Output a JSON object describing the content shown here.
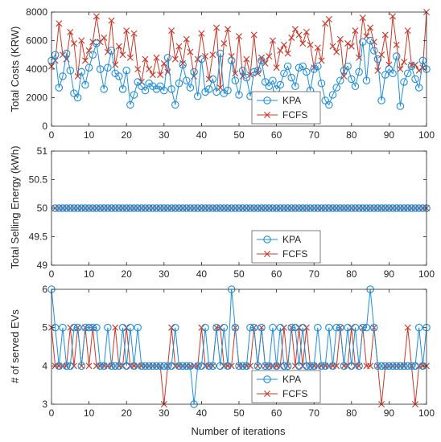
{
  "xlabel": "Number of iterations",
  "colors": {
    "kpa": "#1f8fd8",
    "fcfs": "#c8382a",
    "axis": "#262626",
    "background": "#ffffff"
  },
  "markers": {
    "kpa": "circle",
    "fcfs": "x-mark"
  },
  "chart_data": [
    {
      "type": "line",
      "ylabel": "Total Costs (KRW)",
      "xlim": [
        0,
        100
      ],
      "ylim": [
        0,
        8000
      ],
      "xticks": [
        "0",
        "10",
        "20",
        "30",
        "40",
        "50",
        "60",
        "70",
        "80",
        "90",
        "100"
      ],
      "yticks": [
        "0",
        "2000",
        "4000",
        "6000",
        "8000"
      ],
      "legend": "bottom-right",
      "grid": false,
      "series": [
        {
          "name": "KPA",
          "values": [
            4600,
            5000,
            2700,
            3500,
            5100,
            3900,
            2300,
            2000,
            3800,
            2900,
            4100,
            5000,
            5800,
            4000,
            2600,
            4100,
            5300,
            3700,
            3500,
            2600,
            3900,
            1500,
            2200,
            3100,
            2800,
            2500,
            3000,
            2800,
            2600,
            2800,
            2500,
            4800,
            2600,
            1500,
            3000,
            4300,
            3200,
            2700,
            3800,
            2100,
            4700,
            2400,
            2600,
            3300,
            2400,
            5100,
            2300,
            2500,
            4600,
            3200,
            2200,
            3900,
            3400,
            2100,
            3800,
            3900,
            4600,
            3100,
            2800,
            3200,
            2600,
            2900,
            3700,
            4200,
            3400,
            2800,
            4100,
            4200,
            3800,
            2500,
            4000,
            4200,
            3000,
            1800,
            1500,
            2200,
            2700,
            3200,
            3900,
            4200,
            3300,
            2800,
            3800,
            5900,
            3200,
            6000,
            5300,
            4700,
            1800,
            3600,
            4000,
            3700,
            4900,
            1400,
            3100,
            3700,
            4200,
            3300,
            2700,
            4600,
            4000
          ]
        },
        {
          "name": "FCFS",
          "values": [
            4200,
            4600,
            7200,
            5000,
            4700,
            6600,
            5800,
            3500,
            6000,
            4600,
            5300,
            5900,
            7700,
            5900,
            6200,
            5200,
            7400,
            4300,
            5600,
            5000,
            6700,
            4800,
            6500,
            4000,
            3100,
            4700,
            4000,
            3600,
            4800,
            3600,
            4400,
            3800,
            6700,
            4700,
            5600,
            4400,
            6100,
            5200,
            3500,
            4700,
            6500,
            4900,
            3300,
            5000,
            6900,
            2700,
            5800,
            6800,
            4900,
            3700,
            6300,
            3500,
            4700,
            3600,
            6400,
            3700,
            4800,
            4400,
            4900,
            6000,
            4100,
            5300,
            5700,
            5100,
            6200,
            6800,
            6400,
            5800,
            6600,
            5700,
            4100,
            5500,
            4600,
            7200,
            7500,
            5600,
            5200,
            6100,
            3500,
            5800,
            5600,
            6700,
            4800,
            7600,
            6300,
            6900,
            5900,
            3900,
            5000,
            6400,
            4300,
            7700,
            5700,
            4000,
            4500,
            6700,
            4300,
            4300,
            3900,
            4100,
            8000
          ]
        }
      ]
    },
    {
      "type": "line",
      "ylabel": "Total Selling Energy (kWh)",
      "xlim": [
        0,
        100
      ],
      "ylim": [
        49,
        51
      ],
      "xticks": [
        "0",
        "10",
        "20",
        "30",
        "40",
        "50",
        "60",
        "70",
        "80",
        "90",
        "100"
      ],
      "yticks": [
        "49",
        "49.5",
        "50",
        "50.5",
        "51"
      ],
      "legend": "bottom-right",
      "grid": false,
      "series": [
        {
          "name": "KPA",
          "constant": 50,
          "x_start": 1,
          "x_end": 100
        },
        {
          "name": "FCFS",
          "constant": 50,
          "x_start": 1,
          "x_end": 100
        }
      ]
    },
    {
      "type": "line",
      "ylabel": "# of served EVs",
      "xlim": [
        0,
        100
      ],
      "ylim": [
        3,
        6
      ],
      "xticks": [
        "0",
        "10",
        "20",
        "30",
        "40",
        "50",
        "60",
        "70",
        "80",
        "90",
        "100"
      ],
      "yticks": [
        "3",
        "4",
        "5",
        "6"
      ],
      "legend": "bottom-right",
      "grid": false,
      "series": [
        {
          "name": "KPA",
          "values": [
            6,
            5,
            4,
            5,
            4,
            4,
            5,
            5,
            4,
            5,
            5,
            5,
            5,
            4,
            4,
            5,
            4,
            4,
            4,
            5,
            4,
            5,
            4,
            5,
            4,
            4,
            4,
            4,
            4,
            4,
            4,
            4,
            4,
            5,
            4,
            4,
            4,
            4,
            3,
            4,
            4,
            5,
            4,
            4,
            5,
            4,
            5,
            4,
            6,
            5,
            4,
            4,
            4,
            5,
            5,
            4,
            5,
            4,
            4,
            5,
            4,
            5,
            4,
            4,
            5,
            5,
            4,
            5,
            4,
            4,
            4,
            5,
            4,
            4,
            5,
            4,
            5,
            5,
            4,
            5,
            4,
            5,
            4,
            5,
            5,
            6,
            5,
            4,
            4,
            4,
            4,
            4,
            4,
            4,
            4,
            4,
            4,
            4,
            5,
            4,
            5
          ]
        },
        {
          "name": "FCFS",
          "values": [
            5,
            4,
            4,
            4,
            4,
            5,
            4,
            5,
            4,
            5,
            4,
            5,
            4,
            4,
            4,
            4,
            4,
            5,
            4,
            4,
            5,
            4,
            4,
            4,
            4,
            4,
            4,
            4,
            4,
            4,
            3,
            4,
            5,
            4,
            4,
            4,
            4,
            4,
            4,
            4,
            5,
            4,
            4,
            4,
            5,
            5,
            4,
            4,
            4,
            5,
            4,
            4,
            4,
            4,
            5,
            4,
            5,
            4,
            4,
            4,
            4,
            4,
            5,
            4,
            5,
            4,
            5,
            4,
            5,
            4,
            4,
            4,
            4,
            4,
            4,
            4,
            4,
            5,
            4,
            4,
            5,
            4,
            4,
            5,
            4,
            4,
            5,
            4,
            3,
            4,
            4,
            4,
            4,
            4,
            4,
            5,
            4,
            3,
            4,
            4,
            4
          ]
        }
      ]
    }
  ]
}
